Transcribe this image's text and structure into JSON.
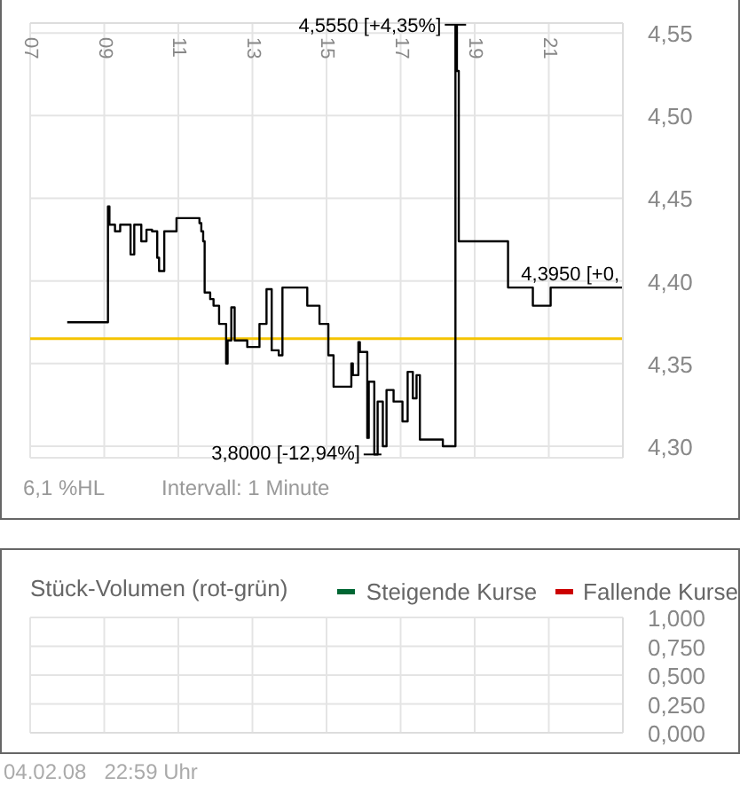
{
  "chart_data": [
    {
      "type": "step",
      "x": [
        8.0,
        9.1,
        9.14,
        9.29,
        9.43,
        9.67,
        9.71,
        9.81,
        9.95,
        10.0,
        10.14,
        10.29,
        10.43,
        10.48,
        10.62,
        10.9,
        10.95,
        11.57,
        11.62,
        11.67,
        11.71,
        11.86,
        11.95,
        12.1,
        12.29,
        12.33,
        12.43,
        12.52,
        12.81,
        12.86,
        13.1,
        13.19,
        13.38,
        13.52,
        13.71,
        13.81,
        14.43,
        14.48,
        14.81,
        15.05,
        15.19,
        15.62,
        15.67,
        15.71,
        15.86,
        15.9,
        16.1,
        16.14,
        16.29,
        16.38,
        16.52,
        16.62,
        16.81,
        17.05,
        17.19,
        17.33,
        17.43,
        17.52,
        18.05,
        18.14,
        18.43,
        18.48,
        18.52,
        18.57,
        19.9,
        20.57,
        21.05,
        23.0
      ],
      "series": [
        {
          "color": "#000000",
          "values": [
            4.375,
            4.445,
            4.434,
            4.43,
            4.434,
            4.434,
            4.416,
            4.434,
            4.434,
            4.424,
            4.431,
            4.43,
            4.414,
            4.406,
            4.43,
            4.43,
            4.438,
            4.435,
            4.43,
            4.424,
            4.393,
            4.389,
            4.385,
            4.374,
            4.35,
            4.364,
            4.384,
            4.364,
            4.364,
            4.36,
            4.36,
            4.374,
            4.395,
            4.358,
            4.355,
            4.396,
            4.396,
            4.385,
            4.374,
            4.355,
            4.336,
            4.336,
            4.35,
            4.343,
            4.363,
            4.357,
            4.305,
            4.339,
            4.295,
            4.327,
            4.3,
            4.334,
            4.327,
            4.315,
            4.345,
            4.329,
            4.343,
            4.304,
            4.304,
            4.3,
            4.3,
            4.555,
            4.527,
            4.424,
            4.396,
            4.385,
            4.396,
            4.396
          ]
        }
      ],
      "xlim": [
        7,
        23
      ],
      "xticks": [
        {
          "value": 7,
          "label": "07"
        },
        {
          "value": 9,
          "label": "09"
        },
        {
          "value": 11,
          "label": "11"
        },
        {
          "value": 13,
          "label": "13"
        },
        {
          "value": 15,
          "label": "15"
        },
        {
          "value": 17,
          "label": "17"
        },
        {
          "value": 19,
          "label": "19"
        },
        {
          "value": 21,
          "label": "21"
        }
      ],
      "ylim": [
        4.293,
        4.556
      ],
      "yticks": [
        {
          "value": 4.3,
          "label": "4,30"
        },
        {
          "value": 4.35,
          "label": "4,35"
        },
        {
          "value": 4.4,
          "label": "4,40"
        },
        {
          "value": 4.45,
          "label": "4,45"
        },
        {
          "value": 4.5,
          "label": "4,50"
        },
        {
          "value": 4.55,
          "label": "4,55"
        }
      ],
      "grid": true,
      "ref_lines": [
        {
          "axis": "y",
          "value": 4.365,
          "color": "#f5c400"
        }
      ],
      "annotations": [
        {
          "text": "4,5550 [+4,35%]",
          "x": 18.48,
          "y": 4.555
        },
        "3,8000 [-12,94%]",
        "4,3950 [+0,",
        "6,1 %HL",
        "Intervall: 1 Minute"
      ]
    },
    {
      "type": "bar",
      "title": "Stück-Volumen (rot-grün)",
      "categories": [
        null,
        null,
        null,
        null,
        null,
        null,
        null,
        null
      ],
      "series": [
        {
          "name": "Steigende Kurse",
          "color": "#006633",
          "values": [
            0,
            0,
            0,
            0,
            0,
            0,
            0,
            0
          ]
        },
        {
          "name": "Fallende Kurse",
          "color": "#cc0000",
          "values": [
            0,
            0,
            0,
            0,
            0,
            0,
            0,
            0
          ]
        }
      ],
      "ylim": [
        0,
        1
      ],
      "yticks": [
        {
          "value": 0,
          "label": "0,000"
        },
        {
          "value": 0.25,
          "label": "0,250"
        },
        {
          "value": 0.5,
          "label": "0,500"
        },
        {
          "value": 0.75,
          "label": "0,750"
        },
        {
          "value": 1,
          "label": "1,000"
        }
      ],
      "tick_labels": "y",
      "grid": true,
      "legend": "top right",
      "annotations": [
        "04.02.08   22:59 Uhr"
      ]
    }
  ]
}
